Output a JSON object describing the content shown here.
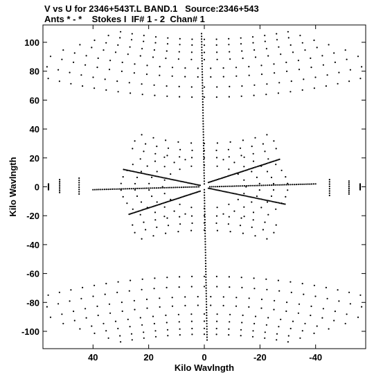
{
  "title": {
    "line1": "V vs U for 2346+543T.L BAND.1   Source:2346+543",
    "line2": "Ants * - *    Stokes I  IF# 1 - 2  Chan# 1"
  },
  "chart_data": {
    "type": "scatter",
    "title": "V vs U for 2346+543T.L BAND.1   Source:2346+543",
    "subtitle": "Ants * - *    Stokes I  IF# 1 - 2  Chan# 1",
    "xlabel": "Kilo Wavlngth",
    "ylabel": "Kilo Wavlngth",
    "xlim": [
      58,
      -58
    ],
    "ylim": [
      -112,
      112
    ],
    "x_reversed": true,
    "xticks": [
      40,
      20,
      0,
      -20,
      -40
    ],
    "yticks": [
      100,
      80,
      60,
      40,
      20,
      0,
      -20,
      -40,
      -60,
      -80,
      -100
    ],
    "grid": false,
    "marker_color": "#000000",
    "tracks": [
      {
        "x": [
          1,
          0
        ],
        "y": [
          106,
          2
        ]
      },
      {
        "x": [
          0,
          -1
        ],
        "y": [
          -2,
          -106
        ]
      },
      {
        "x": [
          -1.5,
          -27
        ],
        "y": [
          3,
          19
        ]
      },
      {
        "x": [
          1.5,
          27
        ],
        "y": [
          -3,
          -19
        ]
      },
      {
        "x": [
          -1.5,
          -29
        ],
        "y": [
          -1,
          -12
        ]
      },
      {
        "x": [
          1.5,
          29
        ],
        "y": [
          1,
          12
        ]
      },
      {
        "x": [
          -2,
          -40
        ],
        "y": [
          0,
          2
        ]
      },
      {
        "x": [
          2,
          40
        ],
        "y": [
          0,
          -2
        ]
      }
    ],
    "arcs": [
      {
        "cx": 0,
        "cy": 190,
        "r": 88,
        "a0": 70,
        "a1": 110
      },
      {
        "cx": 0,
        "cy": 190,
        "r": 92,
        "a0": 68,
        "a1": 112
      },
      {
        "cx": 0,
        "cy": 190,
        "r": 97,
        "a0": 66,
        "a1": 114
      },
      {
        "cx": 0,
        "cy": 190,
        "r": 102,
        "a0": 64,
        "a1": 116
      },
      {
        "cx": 0,
        "cy": 190,
        "r": 108,
        "a0": 62,
        "a1": 118
      },
      {
        "cx": 0,
        "cy": 190,
        "r": 114,
        "a0": 61,
        "a1": 119
      },
      {
        "cx": 0,
        "cy": 190,
        "r": 121,
        "a0": 60,
        "a1": 120
      },
      {
        "cx": 0,
        "cy": 190,
        "r": 128,
        "a0": 60,
        "a1": 120
      },
      {
        "cx": 0,
        "cy": -190,
        "r": 88,
        "a0": 250,
        "a1": 290
      },
      {
        "cx": 0,
        "cy": -190,
        "r": 92,
        "a0": 248,
        "a1": 292
      },
      {
        "cx": 0,
        "cy": -190,
        "r": 97,
        "a0": 246,
        "a1": 294
      },
      {
        "cx": 0,
        "cy": -190,
        "r": 102,
        "a0": 244,
        "a1": 296
      },
      {
        "cx": 0,
        "cy": -190,
        "r": 108,
        "a0": 242,
        "a1": 298
      },
      {
        "cx": 0,
        "cy": -190,
        "r": 114,
        "a0": 241,
        "a1": 299
      },
      {
        "cx": 0,
        "cy": -190,
        "r": 121,
        "a0": 240,
        "a1": 300
      },
      {
        "cx": 0,
        "cy": -190,
        "r": 128,
        "a0": 240,
        "a1": 300
      },
      {
        "cx": 0,
        "cy": 75,
        "r": 45,
        "a0": 60,
        "a1": 120
      },
      {
        "cx": 0,
        "cy": 75,
        "r": 50,
        "a0": 60,
        "a1": 120
      },
      {
        "cx": 0,
        "cy": 75,
        "r": 55,
        "a0": 62,
        "a1": 118
      },
      {
        "cx": 0,
        "cy": -75,
        "r": 45,
        "a0": 240,
        "a1": 300
      },
      {
        "cx": 0,
        "cy": -75,
        "r": 50,
        "a0": 240,
        "a1": 300
      },
      {
        "cx": 0,
        "cy": -75,
        "r": 55,
        "a0": 242,
        "a1": 298
      },
      {
        "cx": 0,
        "cy": 0,
        "r": 15,
        "a0": 90,
        "a1": 270
      },
      {
        "cx": 0,
        "cy": 0,
        "r": 20,
        "a0": 110,
        "a1": 250
      },
      {
        "cx": 0,
        "cy": 0,
        "r": 25,
        "a0": 125,
        "a1": 235
      },
      {
        "cx": 0,
        "cy": 0,
        "r": 30,
        "a0": 140,
        "a1": 220
      },
      {
        "cx": 0,
        "cy": 0,
        "r": 15,
        "a0": -90,
        "a1": 90
      },
      {
        "cx": 0,
        "cy": 0,
        "r": 20,
        "a0": -70,
        "a1": 70
      },
      {
        "cx": 0,
        "cy": 0,
        "r": 25,
        "a0": -55,
        "a1": 55
      },
      {
        "cx": 0,
        "cy": 0,
        "r": 30,
        "a0": -40,
        "a1": 40
      }
    ],
    "columns": [
      {
        "x": 45,
        "y0": -5,
        "y1": 6
      },
      {
        "x": -45,
        "y0": -6,
        "y1": 5
      },
      {
        "x": 52,
        "y0": -4,
        "y1": 5
      },
      {
        "x": -52,
        "y0": -5,
        "y1": 4
      },
      {
        "x": 56,
        "y0": -2,
        "y1": 2
      },
      {
        "x": -56,
        "y0": -2,
        "y1": 2
      }
    ]
  }
}
